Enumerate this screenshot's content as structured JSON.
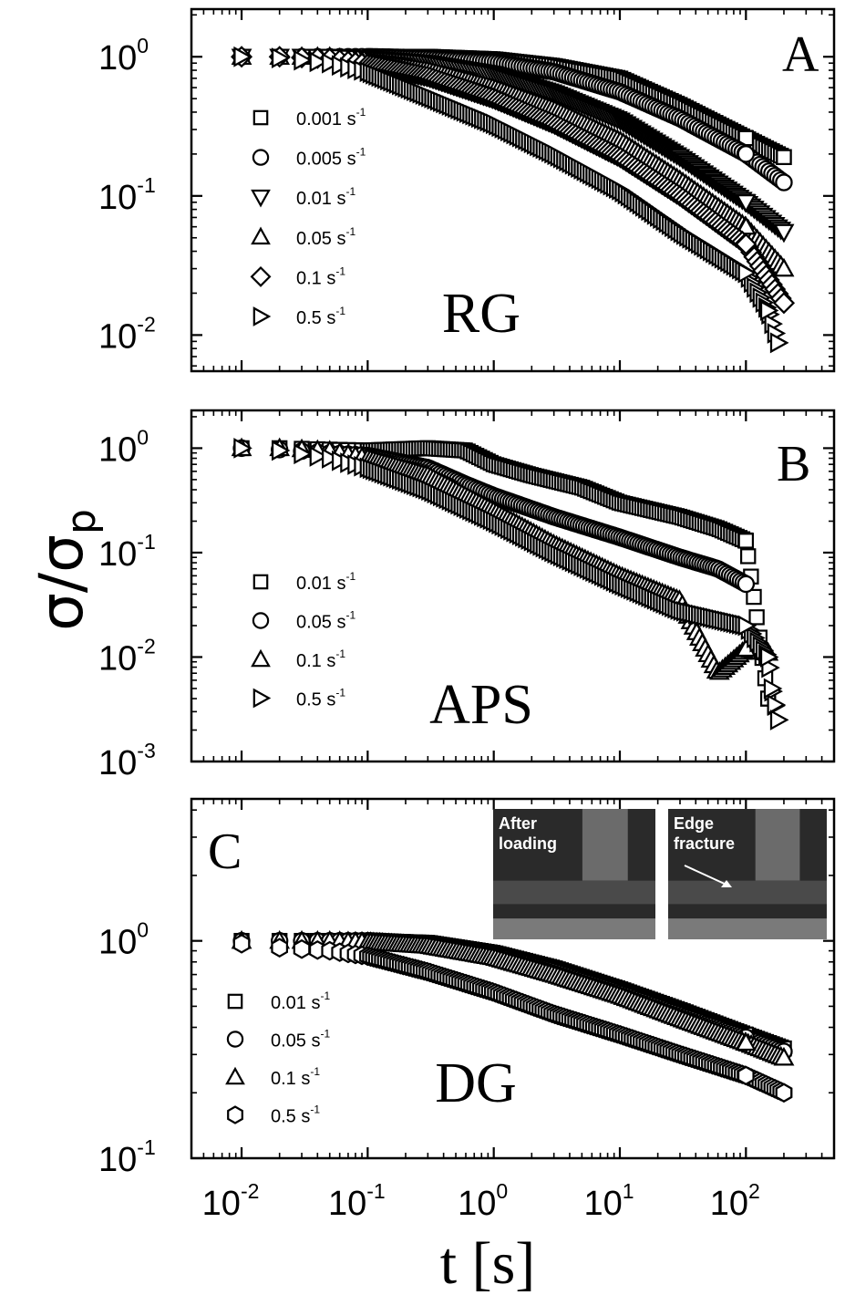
{
  "figure": {
    "ylabel": {
      "symbol": "σ/σ",
      "subscript": "p"
    },
    "xlabel": "t [s]",
    "x_ticks": [
      {
        "base": "10",
        "exp": "-2"
      },
      {
        "base": "10",
        "exp": "-1"
      },
      {
        "base": "10",
        "exp": "0"
      },
      {
        "base": "10",
        "exp": "1"
      },
      {
        "base": "10",
        "exp": "2"
      }
    ]
  },
  "chart_data": [
    {
      "type": "scatter",
      "panel": "A",
      "material": "RG",
      "x_scale": "log",
      "y_scale": "log",
      "xlim": [
        0.004,
        500
      ],
      "ylim": [
        0.0055,
        2.2
      ],
      "y_ticks": [
        {
          "value": 1,
          "base": "10",
          "exp": "0"
        },
        {
          "value": 0.1,
          "base": "10",
          "exp": "-1"
        },
        {
          "value": 0.01,
          "base": "10",
          "exp": "-2"
        }
      ],
      "legend_placement": "left",
      "series": [
        {
          "name": "0.001 s",
          "unit_exp": "-1",
          "marker": "square",
          "points": [
            [
              0.01,
              1.0
            ],
            [
              0.02,
              1.0
            ],
            [
              0.05,
              1.0
            ],
            [
              0.1,
              1.0
            ],
            [
              0.3,
              1.0
            ],
            [
              1,
              0.96
            ],
            [
              3,
              0.86
            ],
            [
              10,
              0.7
            ],
            [
              30,
              0.45
            ],
            [
              100,
              0.26
            ],
            [
              200,
              0.19
            ]
          ]
        },
        {
          "name": "0.005 s",
          "unit_exp": "-1",
          "marker": "circle",
          "points": [
            [
              0.01,
              1.0
            ],
            [
              0.02,
              1.0
            ],
            [
              0.05,
              1.0
            ],
            [
              0.1,
              1.0
            ],
            [
              0.3,
              0.98
            ],
            [
              1,
              0.92
            ],
            [
              3,
              0.78
            ],
            [
              10,
              0.56
            ],
            [
              30,
              0.36
            ],
            [
              100,
              0.2
            ],
            [
              200,
              0.125
            ]
          ]
        },
        {
          "name": "0.01 s",
          "unit_exp": "-1",
          "marker": "triangle-down",
          "points": [
            [
              0.01,
              1.0
            ],
            [
              0.02,
              1.0
            ],
            [
              0.05,
              1.0
            ],
            [
              0.1,
              0.97
            ],
            [
              0.3,
              0.9
            ],
            [
              1,
              0.75
            ],
            [
              3,
              0.55
            ],
            [
              10,
              0.35
            ],
            [
              30,
              0.19
            ],
            [
              100,
              0.09
            ],
            [
              200,
              0.055
            ]
          ]
        },
        {
          "name": "0.05 s",
          "unit_exp": "-1",
          "marker": "triangle-up",
          "points": [
            [
              0.01,
              1.0
            ],
            [
              0.02,
              1.0
            ],
            [
              0.05,
              1.0
            ],
            [
              0.1,
              0.92
            ],
            [
              0.3,
              0.8
            ],
            [
              1,
              0.6
            ],
            [
              3,
              0.42
            ],
            [
              10,
              0.25
            ],
            [
              30,
              0.13
            ],
            [
              100,
              0.06
            ],
            [
              200,
              0.03
            ]
          ]
        },
        {
          "name": "0.1 s",
          "unit_exp": "-1",
          "marker": "diamond",
          "points": [
            [
              0.01,
              1.0
            ],
            [
              0.02,
              1.0
            ],
            [
              0.05,
              0.97
            ],
            [
              0.1,
              0.88
            ],
            [
              0.3,
              0.72
            ],
            [
              1,
              0.5
            ],
            [
              3,
              0.33
            ],
            [
              10,
              0.19
            ],
            [
              30,
              0.1
            ],
            [
              100,
              0.045
            ],
            [
              200,
              0.017
            ]
          ]
        },
        {
          "name": "0.5 s",
          "unit_exp": "-1",
          "marker": "triangle-right",
          "points": [
            [
              0.01,
              1.0
            ],
            [
              0.02,
              0.98
            ],
            [
              0.05,
              0.9
            ],
            [
              0.1,
              0.78
            ],
            [
              0.3,
              0.52
            ],
            [
              1,
              0.33
            ],
            [
              3,
              0.2
            ],
            [
              10,
              0.11
            ],
            [
              30,
              0.055
            ],
            [
              100,
              0.028
            ],
            [
              150,
              0.015
            ],
            [
              180,
              0.0088
            ]
          ]
        }
      ]
    },
    {
      "type": "scatter",
      "panel": "B",
      "material": "APS",
      "x_scale": "log",
      "y_scale": "log",
      "xlim": [
        0.004,
        500
      ],
      "ylim": [
        0.001,
        2.3
      ],
      "y_ticks": [
        {
          "value": 1,
          "base": "10",
          "exp": "0"
        },
        {
          "value": 0.1,
          "base": "10",
          "exp": "-1"
        },
        {
          "value": 0.01,
          "base": "10",
          "exp": "-2"
        },
        {
          "value": 0.001,
          "base": "10",
          "exp": "-3"
        }
      ],
      "legend_placement": "left",
      "series": [
        {
          "name": "0.01 s",
          "unit_exp": "-1",
          "marker": "square",
          "points": [
            [
              0.01,
              1.0
            ],
            [
              0.02,
              1.0
            ],
            [
              0.05,
              0.97
            ],
            [
              0.1,
              0.95
            ],
            [
              0.3,
              1.0
            ],
            [
              0.6,
              0.95
            ],
            [
              1,
              0.7
            ],
            [
              2,
              0.55
            ],
            [
              5,
              0.42
            ],
            [
              10,
              0.3
            ],
            [
              30,
              0.22
            ],
            [
              60,
              0.17
            ],
            [
              100,
              0.13
            ],
            [
              150,
              0.004
            ]
          ]
        },
        {
          "name": "0.05 s",
          "unit_exp": "-1",
          "marker": "circle",
          "points": [
            [
              0.01,
              1.0
            ],
            [
              0.02,
              0.97
            ],
            [
              0.05,
              0.9
            ],
            [
              0.1,
              0.85
            ],
            [
              0.3,
              0.65
            ],
            [
              0.6,
              0.45
            ],
            [
              1,
              0.35
            ],
            [
              3,
              0.22
            ],
            [
              10,
              0.14
            ],
            [
              30,
              0.09
            ],
            [
              60,
              0.07
            ],
            [
              100,
              0.05
            ]
          ]
        },
        {
          "name": "0.1 s",
          "unit_exp": "-1",
          "marker": "triangle-up",
          "points": [
            [
              0.01,
              1.0
            ],
            [
              0.02,
              1.0
            ],
            [
              0.05,
              0.95
            ],
            [
              0.1,
              0.8
            ],
            [
              0.3,
              0.55
            ],
            [
              1,
              0.25
            ],
            [
              3,
              0.12
            ],
            [
              10,
              0.06
            ],
            [
              30,
              0.035
            ],
            [
              60,
              0.007
            ],
            [
              100,
              0.012
            ],
            [
              150,
              0.011
            ]
          ]
        },
        {
          "name": "0.5 s",
          "unit_exp": "-1",
          "marker": "triangle-right",
          "points": [
            [
              0.01,
              1.0
            ],
            [
              0.02,
              0.95
            ],
            [
              0.05,
              0.8
            ],
            [
              0.1,
              0.65
            ],
            [
              0.3,
              0.4
            ],
            [
              1,
              0.2
            ],
            [
              3,
              0.1
            ],
            [
              10,
              0.05
            ],
            [
              30,
              0.028
            ],
            [
              100,
              0.02
            ],
            [
              150,
              0.01
            ],
            [
              160,
              0.005
            ],
            [
              170,
              0.0035
            ],
            [
              180,
              0.0025
            ]
          ]
        }
      ]
    },
    {
      "type": "scatter",
      "panel": "C",
      "material": "DG",
      "x_scale": "log",
      "y_scale": "log",
      "xlim": [
        0.004,
        500
      ],
      "ylim": [
        0.1,
        4.5
      ],
      "y_ticks": [
        {
          "value": 1,
          "base": "10",
          "exp": "0"
        },
        {
          "value": 0.1,
          "base": "10",
          "exp": "-1"
        }
      ],
      "legend_placement": "bottom-left",
      "inset_photos": [
        {
          "label_lines": [
            "After",
            "loading"
          ]
        },
        {
          "label_lines": [
            "Edge",
            "fracture"
          ]
        }
      ],
      "series": [
        {
          "name": "0.01 s",
          "unit_exp": "-1",
          "marker": "square",
          "points": [
            [
              0.01,
              1.0
            ],
            [
              0.02,
              1.0
            ],
            [
              0.05,
              1.0
            ],
            [
              0.1,
              1.0
            ],
            [
              0.3,
              0.98
            ],
            [
              1,
              0.88
            ],
            [
              3,
              0.75
            ],
            [
              10,
              0.6
            ],
            [
              30,
              0.48
            ],
            [
              100,
              0.37
            ],
            [
              200,
              0.32
            ]
          ]
        },
        {
          "name": "0.05 s",
          "unit_exp": "-1",
          "marker": "circle",
          "points": [
            [
              0.01,
              1.0
            ],
            [
              0.02,
              1.0
            ],
            [
              0.05,
              1.0
            ],
            [
              0.1,
              1.0
            ],
            [
              0.3,
              0.97
            ],
            [
              1,
              0.86
            ],
            [
              3,
              0.73
            ],
            [
              10,
              0.58
            ],
            [
              30,
              0.46
            ],
            [
              100,
              0.36
            ],
            [
              200,
              0.31
            ]
          ]
        },
        {
          "name": "0.1 s",
          "unit_exp": "-1",
          "marker": "triangle-up",
          "points": [
            [
              0.01,
              1.0
            ],
            [
              0.02,
              1.0
            ],
            [
              0.05,
              1.0
            ],
            [
              0.1,
              0.99
            ],
            [
              0.3,
              0.95
            ],
            [
              1,
              0.84
            ],
            [
              3,
              0.7
            ],
            [
              10,
              0.56
            ],
            [
              30,
              0.44
            ],
            [
              100,
              0.34
            ],
            [
              200,
              0.29
            ]
          ]
        },
        {
          "name": "0.5 s",
          "unit_exp": "-1",
          "marker": "hexagon",
          "points": [
            [
              0.01,
              0.97
            ],
            [
              0.02,
              0.93
            ],
            [
              0.05,
              0.9
            ],
            [
              0.1,
              0.85
            ],
            [
              0.3,
              0.72
            ],
            [
              1,
              0.58
            ],
            [
              3,
              0.46
            ],
            [
              10,
              0.37
            ],
            [
              30,
              0.3
            ],
            [
              100,
              0.24
            ],
            [
              200,
              0.2
            ]
          ]
        }
      ]
    }
  ]
}
